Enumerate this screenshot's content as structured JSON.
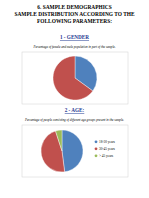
{
  "document": {
    "heading": [
      "6. SAMPLE DEMOGRAPHICS",
      "SAMPLE DISTRIBUTION ACCORDING TO THE",
      "FOLLOWING PARAMETERS:"
    ]
  },
  "chart_data": [
    {
      "type": "pie",
      "title": "1 - GENDER",
      "subtitle": "Percentage of female and male population in part of the sample.",
      "categories": [
        null,
        null
      ],
      "values": [
        35,
        65
      ],
      "colors": [
        "#4f81bd",
        "#c0504d"
      ]
    },
    {
      "type": "pie",
      "title": "2 - AGE:",
      "subtitle": "Percentage of people consisting of different age groups present in the sample.",
      "categories": [
        "18-30 years",
        "30-45 years",
        "> 45 years"
      ],
      "values": [
        48,
        47,
        5
      ],
      "colors": [
        "#4f81bd",
        "#c0504d",
        "#9bbb59"
      ],
      "legend": "right"
    }
  ]
}
